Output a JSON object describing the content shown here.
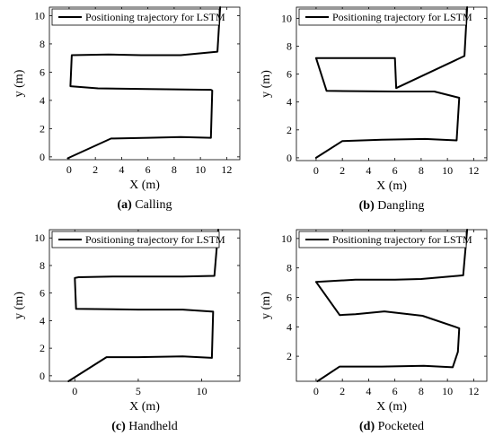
{
  "chart_data": [
    {
      "type": "line",
      "caption_letter": "(a)",
      "caption_text": " Calling",
      "xlabel": "X (m)",
      "ylabel": "y (m)",
      "xlim": [
        -1.5,
        13
      ],
      "ylim": [
        -0.2,
        10.6
      ],
      "xticks": [
        0,
        2,
        4,
        6,
        8,
        10,
        12
      ],
      "yticks": [
        0,
        2,
        4,
        6,
        8,
        10
      ],
      "legend": "top-left",
      "series": [
        {
          "name": "Positioning trajectory for  LSTM",
          "x": [
            -0.1,
            3.2,
            6.0,
            8.5,
            10.8,
            10.9,
            10.8,
            6.0,
            2.2,
            0.1,
            0.2,
            3.0,
            5.5,
            8.5,
            11.3,
            11.5
          ],
          "y": [
            -0.1,
            1.3,
            1.35,
            1.4,
            1.35,
            4.7,
            4.75,
            4.8,
            4.85,
            5.0,
            7.2,
            7.25,
            7.2,
            7.2,
            7.45,
            10.6
          ]
        }
      ]
    },
    {
      "type": "line",
      "caption_letter": "(b)",
      "caption_text": " Dangling",
      "xlabel": "X (m)",
      "ylabel": "y (m)",
      "xlim": [
        -1.5,
        13
      ],
      "ylim": [
        -0.2,
        10.8
      ],
      "xticks": [
        0,
        2,
        4,
        6,
        8,
        10,
        12
      ],
      "yticks": [
        0,
        2,
        4,
        6,
        8,
        10
      ],
      "legend": "top-left",
      "series": [
        {
          "name": "Positioning trajectory for  LSTM",
          "x": [
            0.0,
            2.0,
            5.0,
            8.3,
            10.7,
            10.9,
            9.0,
            6.0,
            0.8,
            0.0,
            6.0,
            6.1,
            11.3,
            11.5
          ],
          "y": [
            0.0,
            1.2,
            1.3,
            1.35,
            1.25,
            4.3,
            4.75,
            4.75,
            4.8,
            7.15,
            7.15,
            5.0,
            7.3,
            10.8
          ]
        }
      ]
    },
    {
      "type": "line",
      "caption_letter": "(c)",
      "caption_text": " Handheld",
      "xlabel": "X (m)",
      "ylabel": "y (m)",
      "xlim": [
        -2,
        13
      ],
      "ylim": [
        -0.4,
        10.6
      ],
      "xticks": [
        0,
        5,
        10
      ],
      "yticks": [
        0,
        2,
        4,
        6,
        8,
        10
      ],
      "legend": "top-left",
      "series": [
        {
          "name": "Positioning trajectory for  LSTM",
          "x": [
            -0.5,
            2.5,
            5.0,
            8.5,
            10.8,
            10.9,
            8.5,
            5.0,
            0.1,
            0.0,
            0.3,
            3.0,
            6.0,
            8.5,
            11.0,
            11.3
          ],
          "y": [
            -0.4,
            1.35,
            1.35,
            1.4,
            1.3,
            4.65,
            4.8,
            4.8,
            4.85,
            7.1,
            7.15,
            7.2,
            7.2,
            7.2,
            7.25,
            10.6
          ]
        }
      ]
    },
    {
      "type": "line",
      "caption_letter": "(d)",
      "caption_text": " Pocketed",
      "xlabel": "X (m)",
      "ylabel": "y (m)",
      "xlim": [
        -1.5,
        13
      ],
      "ylim": [
        0.3,
        10.6
      ],
      "xticks": [
        0,
        2,
        4,
        6,
        8,
        10,
        12
      ],
      "yticks": [
        2,
        4,
        6,
        8,
        10
      ],
      "legend": "top-left",
      "series": [
        {
          "name": "Positioning trajectory for  LSTM",
          "x": [
            0.1,
            1.8,
            5.0,
            8.2,
            10.4,
            10.8,
            10.9,
            8.1,
            5.2,
            3.0,
            1.8,
            0.0,
            3.0,
            6.0,
            8.0,
            11.2,
            11.5
          ],
          "y": [
            0.3,
            1.3,
            1.3,
            1.35,
            1.25,
            2.3,
            3.9,
            4.75,
            5.05,
            4.85,
            4.8,
            7.05,
            7.2,
            7.2,
            7.25,
            7.5,
            10.6
          ]
        }
      ]
    }
  ]
}
